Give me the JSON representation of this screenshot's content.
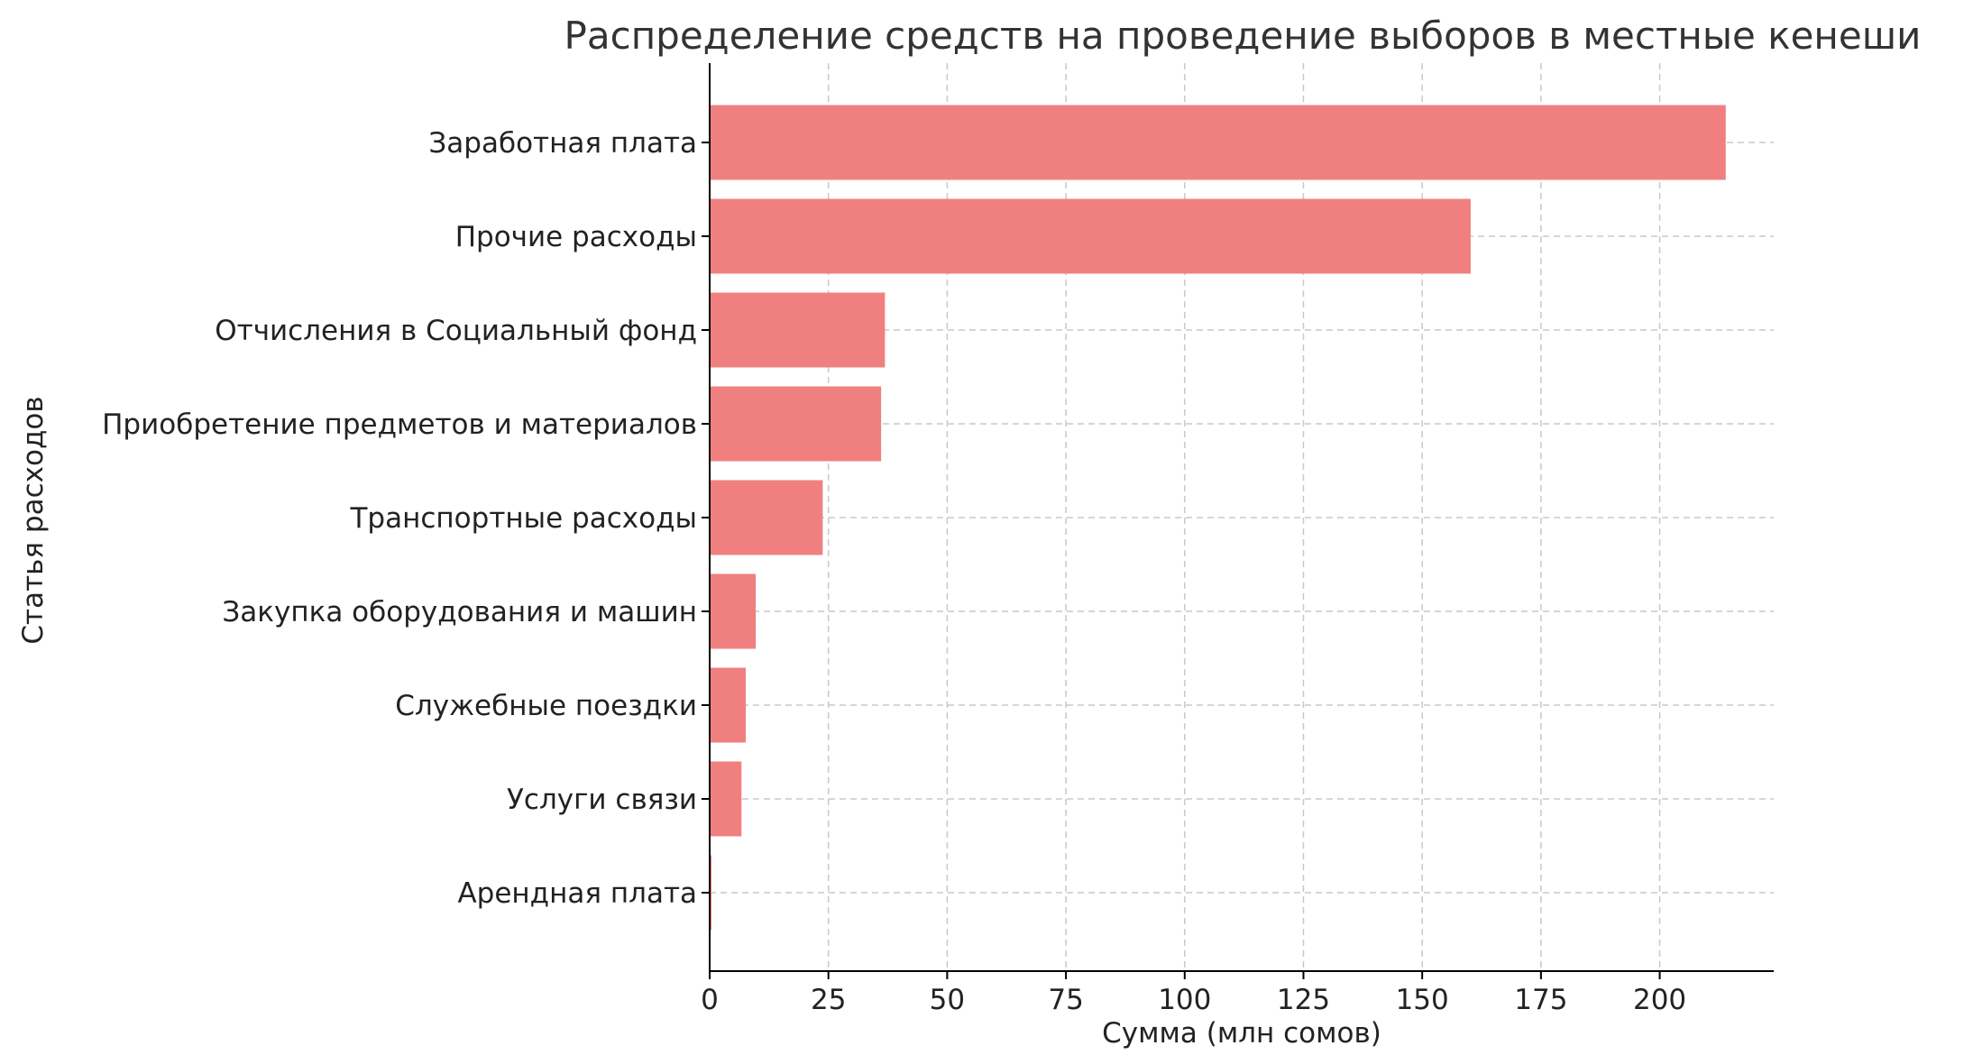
{
  "chart_data": {
    "type": "bar",
    "orientation": "horizontal",
    "title": "Распределение средств на проведение выборов в местные кенеши",
    "xlabel": "Сумма (млн сомов)",
    "ylabel": "Статья расходов",
    "categories": [
      "Заработная плата",
      "Прочие расходы",
      "Отчисления в Социальный фонд",
      "Приобретение предметов и материалов",
      "Транспортные расходы",
      "Закупка оборудования и машин",
      "Служебные поездки",
      "Услуги связи",
      "Арендная плата"
    ],
    "values": [
      213.9,
      160.2,
      36.9,
      36.1,
      23.8,
      9.7,
      7.6,
      6.7,
      0.4
    ],
    "xlim": [
      0,
      224
    ],
    "xticks": [
      0,
      25,
      50,
      75,
      100,
      125,
      150,
      175,
      200
    ],
    "grid": true,
    "bar_color": "#f08080"
  }
}
